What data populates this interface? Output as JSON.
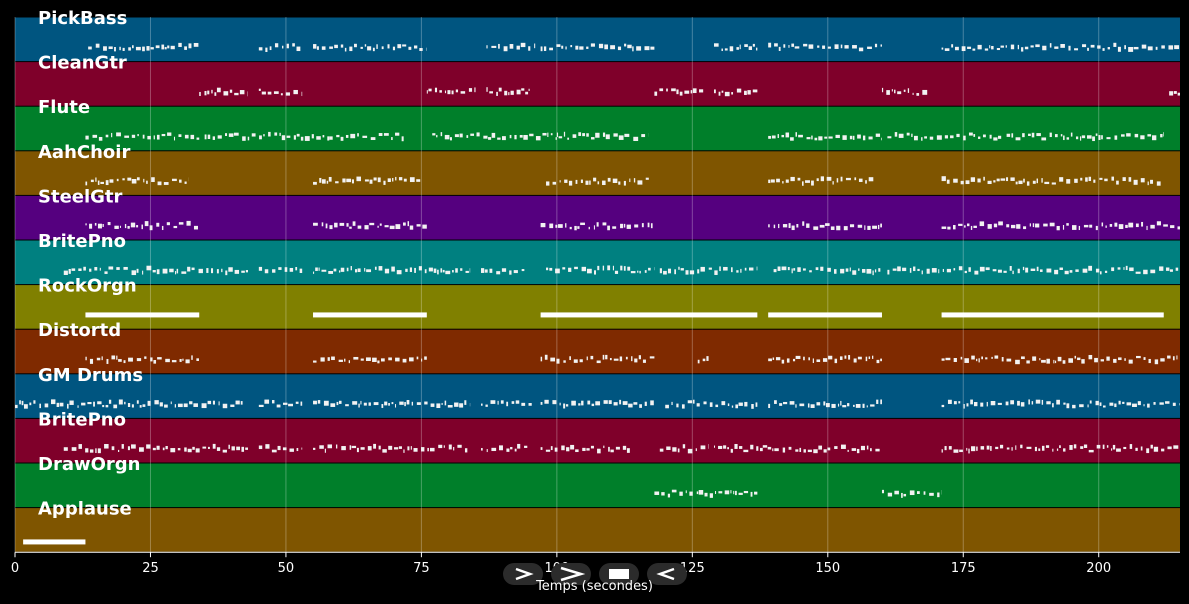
{
  "chart_data": {
    "type": "piano-roll",
    "xlabel": "Temps (secondes)",
    "xlim": [
      0,
      215
    ],
    "xticks": [
      0,
      25,
      50,
      75,
      100,
      125,
      150,
      175,
      200
    ],
    "grid": true,
    "tracks": [
      {
        "name": "PickBass",
        "color": "#005580",
        "segments": [
          [
            13.5,
            34
          ],
          [
            45,
            53
          ],
          [
            55,
            76
          ],
          [
            87,
            96
          ],
          [
            97,
            118
          ],
          [
            129,
            137
          ],
          [
            139,
            160
          ],
          [
            171,
            215
          ]
        ]
      },
      {
        "name": "CleanGtr",
        "color": "#7f002a",
        "segments": [
          [
            34,
            43
          ],
          [
            45,
            53
          ],
          [
            76,
            85
          ],
          [
            87,
            95
          ],
          [
            118,
            127
          ],
          [
            129,
            137
          ],
          [
            160,
            169
          ],
          [
            213,
            215
          ]
        ]
      },
      {
        "name": "Flute",
        "color": "#007f2a",
        "segments": [
          [
            13,
            34
          ],
          [
            35,
            58
          ],
          [
            58,
            72
          ],
          [
            77,
            100
          ],
          [
            100,
            117
          ],
          [
            139,
            160
          ],
          [
            161,
            182
          ],
          [
            183,
            212
          ]
        ]
      },
      {
        "name": "AahChoir",
        "color": "#7f5500",
        "segments": [
          [
            13,
            32
          ],
          [
            55,
            75
          ],
          [
            98,
            117
          ],
          [
            139,
            159
          ],
          [
            171,
            212
          ]
        ]
      },
      {
        "name": "SteelGtr",
        "color": "#55007f",
        "segments": [
          [
            13,
            34
          ],
          [
            55,
            76
          ],
          [
            97,
            118
          ],
          [
            139,
            160
          ],
          [
            171,
            215
          ]
        ]
      },
      {
        "name": "BritePno",
        "color": "#008080",
        "segments": [
          [
            9,
            43
          ],
          [
            45,
            53
          ],
          [
            55,
            84
          ],
          [
            86,
            94
          ],
          [
            98,
            118
          ],
          [
            119,
            137
          ],
          [
            140,
            160
          ],
          [
            161,
            215
          ]
        ]
      },
      {
        "name": "RockOrgn",
        "color": "#808000",
        "segments": [
          [
            13,
            34
          ],
          [
            55,
            76
          ],
          [
            97,
            137
          ],
          [
            139,
            160
          ],
          [
            171,
            212
          ]
        ]
      },
      {
        "name": "Distortd",
        "color": "#7f2a00",
        "segments": [
          [
            13,
            34
          ],
          [
            55,
            76
          ],
          [
            97,
            118
          ],
          [
            126,
            128
          ],
          [
            139,
            160
          ],
          [
            171,
            215
          ]
        ]
      },
      {
        "name": "GM Drums",
        "color": "#005580",
        "segments": [
          [
            0,
            42
          ],
          [
            45,
            53
          ],
          [
            55,
            84
          ],
          [
            86,
            96
          ],
          [
            97,
            118
          ],
          [
            120,
            137
          ],
          [
            139,
            160
          ],
          [
            171,
            215
          ]
        ]
      },
      {
        "name": "BritePno",
        "color": "#7f002a",
        "segments": [
          [
            9,
            43
          ],
          [
            45,
            53
          ],
          [
            55,
            84
          ],
          [
            86,
            95
          ],
          [
            97,
            114
          ],
          [
            119,
            128
          ],
          [
            129,
            138
          ],
          [
            138,
            160
          ],
          [
            171,
            215
          ]
        ]
      },
      {
        "name": "DrawOrgn",
        "color": "#007f2a",
        "segments": [
          [
            118,
            137
          ],
          [
            160,
            171
          ]
        ]
      },
      {
        "name": "Applause",
        "color": "#7f5500",
        "segments": [
          [
            1.5,
            13
          ]
        ]
      }
    ]
  },
  "icons": {
    "play": "play-icon",
    "fast_forward": "fast-forward-icon",
    "stop": "stop-icon",
    "rewind": "rewind-icon"
  }
}
